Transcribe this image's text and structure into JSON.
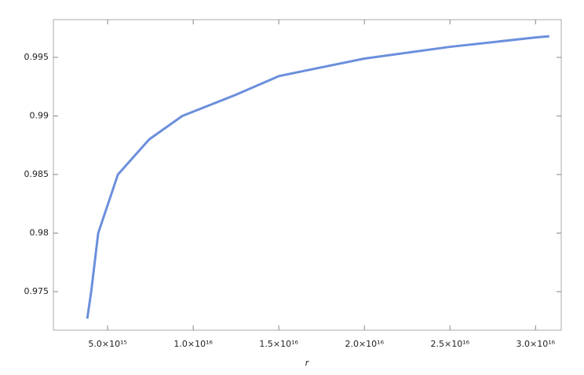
{
  "chart_data": {
    "type": "line",
    "xlabel": "r",
    "x": [
      3810000000000000.0,
      4040000000000000.0,
      4450000000000000.0,
      5600000000000000.0,
      7430000000000000.0,
      9360000000000000.0,
      1.248e+16,
      1.5e+16,
      2e+16,
      2.5e+16,
      3e+16,
      3.08e+16
    ],
    "series": [
      {
        "color": "#6c8fdc",
        "values": [
          0.9727,
          0.975,
          0.98,
          0.985,
          0.988,
          0.99,
          0.9918,
          0.9934,
          0.9949,
          0.9959,
          0.9967,
          0.9968
        ]
      }
    ],
    "xlim": [
      1830000000000000.0,
      3.15e+16
    ],
    "ylim": [
      0.97171,
      0.99822
    ],
    "xticks": [
      {
        "value": 5000000000000000.0,
        "label": "5.0×10¹⁵"
      },
      {
        "value": 1e+16,
        "label": "1.0×10¹⁶"
      },
      {
        "value": 1.5e+16,
        "label": "1.5×10¹⁶"
      },
      {
        "value": 2e+16,
        "label": "2.0×10¹⁶"
      },
      {
        "value": 2.5e+16,
        "label": "2.5×10¹⁶"
      },
      {
        "value": 3e+16,
        "label": "3.0×10¹⁶"
      }
    ],
    "yticks": [
      0.975,
      0.98,
      0.985,
      0.99,
      0.995
    ]
  }
}
